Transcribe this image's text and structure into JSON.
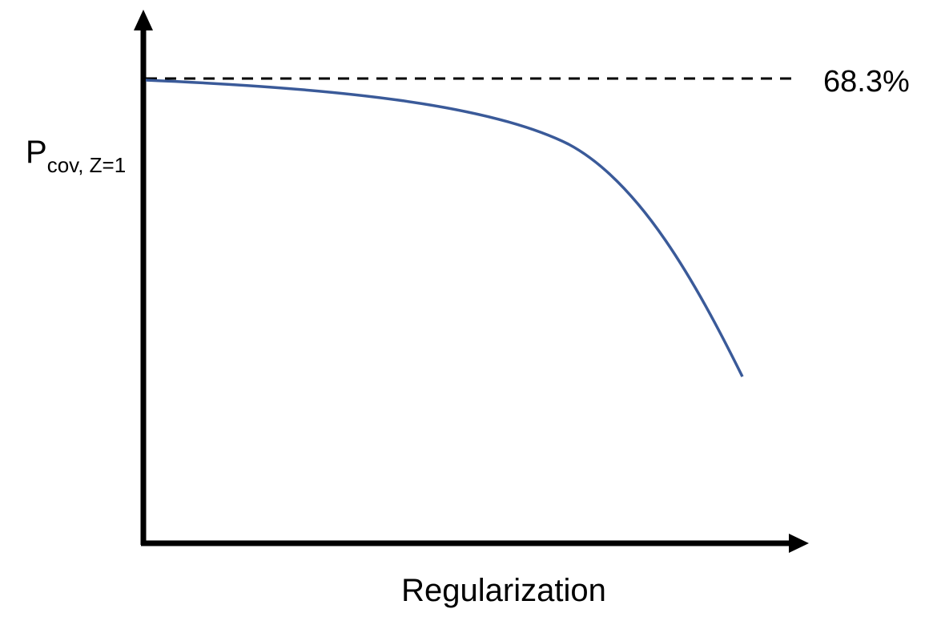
{
  "diagram": {
    "y_axis": {
      "label_main": "P",
      "label_subscript": "cov, Z=1"
    },
    "x_axis": {
      "label": "Regularization"
    },
    "reference_line": {
      "label": "68.3%",
      "style": "dashed"
    },
    "curve": {
      "color": "#3a5a99",
      "description_shape": "decreasing"
    },
    "axis_color": "#000000"
  }
}
